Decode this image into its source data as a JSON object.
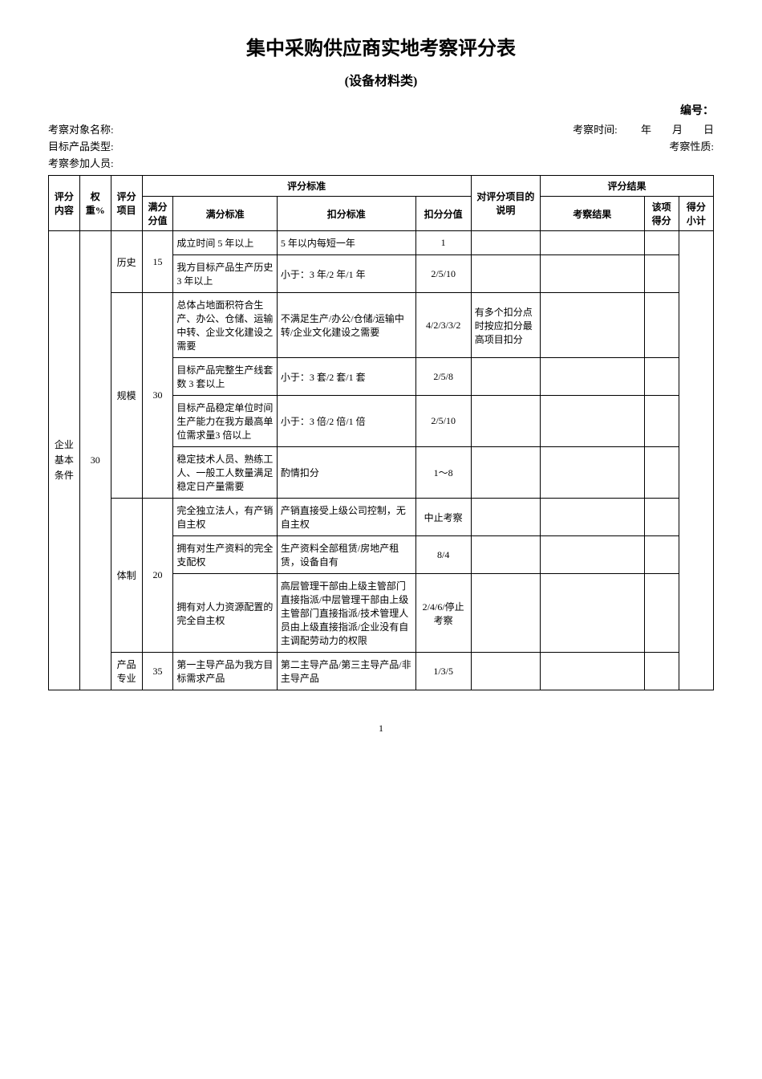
{
  "title": "集中采购供应商实地考察评分表",
  "subtitle": "(设备材料类)",
  "number_label": "编号：",
  "meta": {
    "subject_label": "考察对象名称:",
    "time_label": "考察时间:",
    "time_value": "　　年　　月　　日",
    "product_label": "目标产品类型:",
    "nature_label": "考察性质:",
    "participants_label": "考察参加人员:"
  },
  "header": {
    "content": "评分内容",
    "weight": "权重%",
    "item": "评分项目",
    "criteria_group": "评分标准",
    "full_score": "满分分值",
    "full_criteria": "满分标准",
    "deduct_criteria": "扣分标准",
    "deduct_value": "扣分分值",
    "note": "对评分项目的说明",
    "result_group": "评分结果",
    "result": "考察结果",
    "item_score": "该项得分",
    "subtotal": "得分小计"
  },
  "group": {
    "content": "企业基本条件",
    "weight": "30"
  },
  "items": [
    {
      "name": "历史",
      "full_score": "15",
      "rows": [
        {
          "full": "成立时间 5 年以上",
          "deduct": "5 年以内每短一年",
          "value": "1",
          "note": ""
        },
        {
          "full": "我方目标产品生产历史 3 年以上",
          "deduct": "小于：3 年/2 年/1 年",
          "value": "2/5/10",
          "note": ""
        }
      ]
    },
    {
      "name": "规模",
      "full_score": "30",
      "rows": [
        {
          "full": "总体占地面积符合生产、办公、仓储、运输中转、企业文化建设之需要",
          "deduct": "不满足生产/办公/仓储/运输中转/企业文化建设之需要",
          "value": "4/2/3/3/2",
          "note": "有多个扣分点时按应扣分最高项目扣分"
        },
        {
          "full": "目标产品完整生产线套数 3 套以上",
          "deduct": "小于：3 套/2 套/1 套",
          "value": "2/5/8",
          "note": ""
        },
        {
          "full": "目标产品稳定单位时间生产能力在我方最高单位需求量3 倍以上",
          "deduct": "小于：3 倍/2 倍/1 倍",
          "value": "2/5/10",
          "note": ""
        },
        {
          "full": "稳定技术人员、熟练工人、一般工人数量满足稳定日产量需要",
          "deduct": "酌情扣分",
          "value": "1～8",
          "note": ""
        }
      ]
    },
    {
      "name": "体制",
      "full_score": "20",
      "rows": [
        {
          "full": "完全独立法人，有产销自主权",
          "deduct": "产销直接受上级公司控制，无自主权",
          "value": "中止考察",
          "note": ""
        },
        {
          "full": "拥有对生产资料的完全支配权",
          "deduct": "生产资料全部租赁/房地产租赁，设备自有",
          "value": "8/4",
          "note": ""
        },
        {
          "full": "拥有对人力资源配置的完全自主权",
          "deduct": "高层管理干部由上级主管部门直接指派/中层管理干部由上级主管部门直接指派/技术管理人员由上级直接指派/企业没有自主调配劳动力的权限",
          "value": "2/4/6/停止考察",
          "note": ""
        }
      ]
    },
    {
      "name": "产品专业",
      "full_score": "35",
      "rows": [
        {
          "full": "第一主导产品为我方目标需求产品",
          "deduct": "第二主导产品/第三主导产品/非主导产品",
          "value": "1/3/5",
          "note": ""
        }
      ]
    }
  ],
  "page_number": "1"
}
